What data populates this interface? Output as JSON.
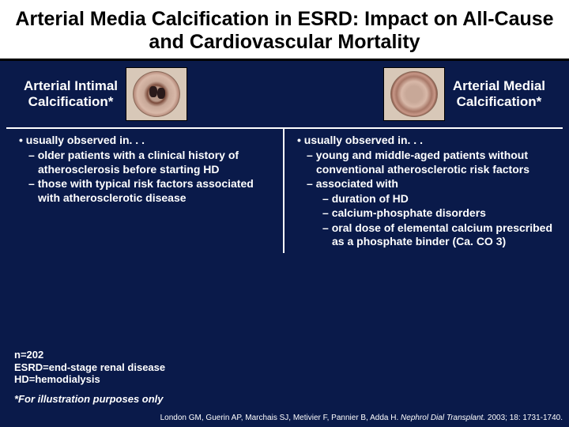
{
  "title": "Arterial Media Calcification in ESRD: Impact on All-Cause and Cardiovascular Mortality",
  "left": {
    "label": "Arterial Intimal\nCalcification*",
    "header": "usually observed in. . .",
    "bullets": [
      "older patients with a clinical history of atherosclerosis before starting HD",
      "those with typical risk factors associated with atherosclerotic disease"
    ]
  },
  "right": {
    "label": "Arterial Medial\nCalcification*",
    "header": "usually observed in. . .",
    "bullets": [
      "young and middle-aged patients without conventional atherosclerotic risk factors",
      "associated with"
    ],
    "sub": [
      "duration of HD",
      "calcium-phosphate disorders",
      "oral dose of elemental calcium prescribed as a phosphate binder (Ca. CO 3)"
    ]
  },
  "footnotes": {
    "n": "n=202",
    "esrd": "ESRD=end-stage renal disease",
    "hd": "HD=hemodialysis"
  },
  "illus": "*For illustration purposes only",
  "cite": {
    "authors": "London GM, Guerin AP, Marchais SJ, Metivier F, Pannier B, Adda H.",
    "journal": "Nephrol Dial Transplant.",
    "rest": " 2003; 18: 1731-1740."
  },
  "colors": {
    "bg": "#0a1a4a",
    "titlebg": "#ffffff",
    "text": "#ffffff"
  }
}
